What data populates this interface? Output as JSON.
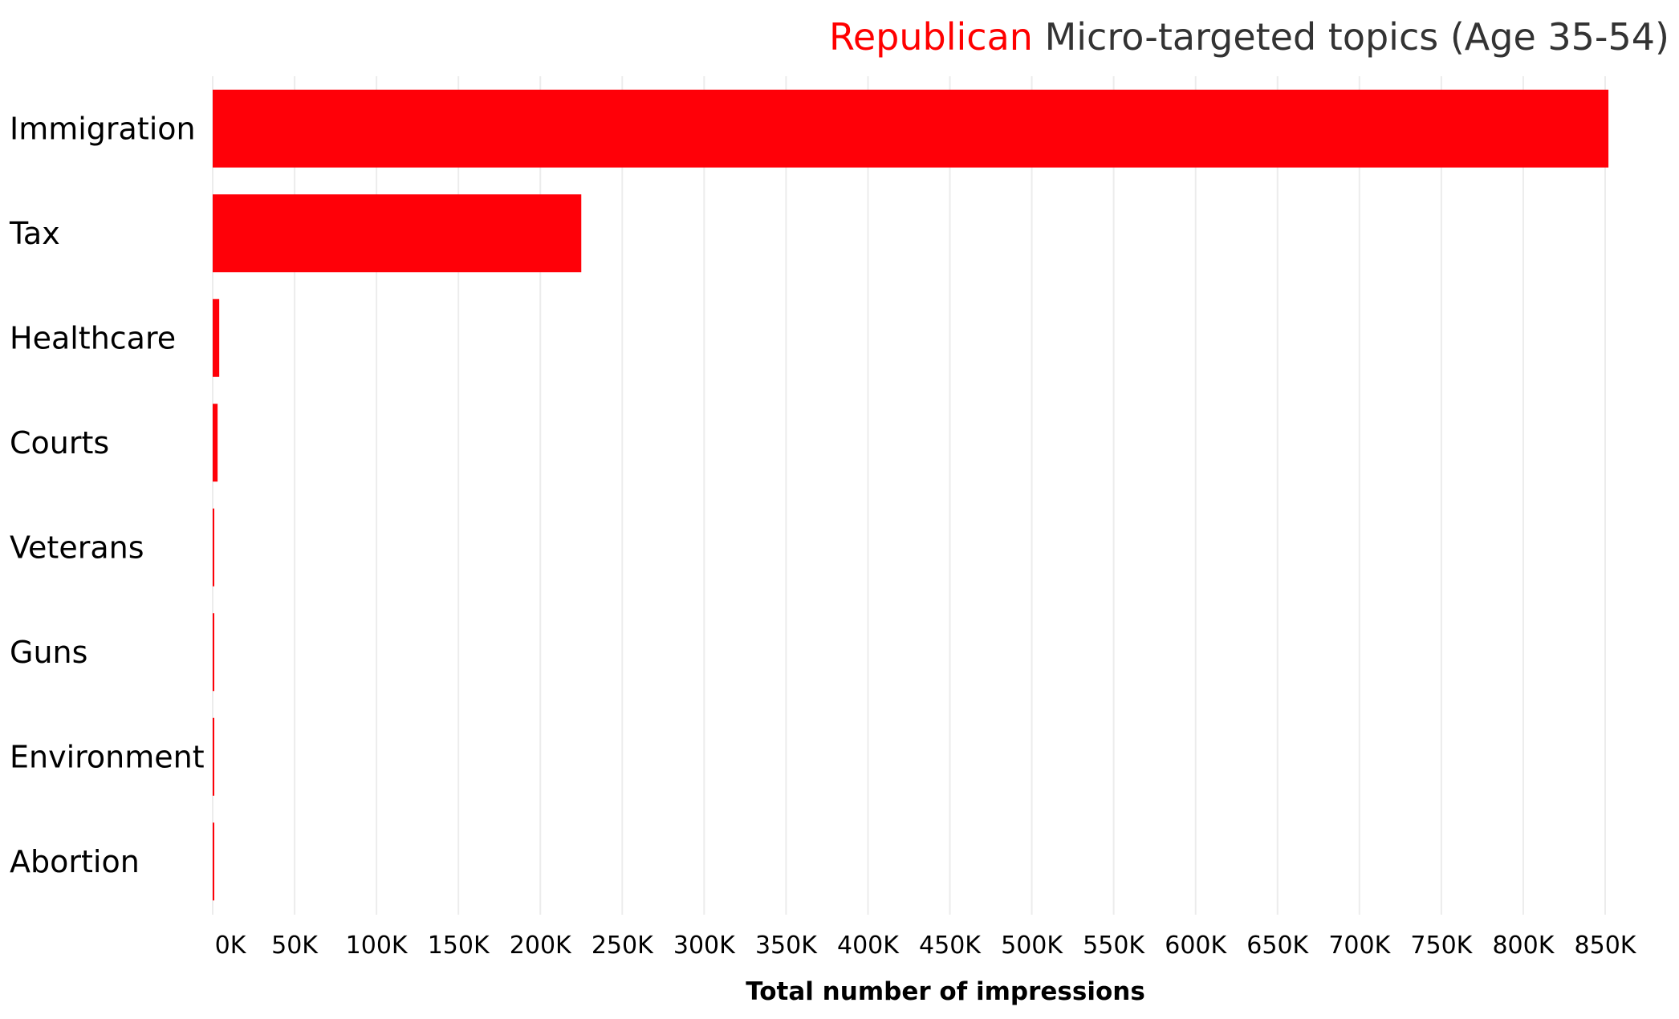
{
  "chart_data": {
    "type": "bar",
    "orientation": "horizontal",
    "title": {
      "highlight": "Republican",
      "rest": "Micro-targeted topics (Age 35-54)"
    },
    "categories": [
      "Immigration",
      "Tax",
      "Healthcare",
      "Courts",
      "Veterans",
      "Guns",
      "Environment",
      "Abortion"
    ],
    "values": [
      852000,
      225000,
      4000,
      3000,
      700,
      600,
      500,
      400
    ],
    "xlabel": "Total number of impressions",
    "ylabel": "",
    "xlim": [
      0,
      850000
    ],
    "x_ticks": [
      0,
      50000,
      100000,
      150000,
      200000,
      250000,
      300000,
      350000,
      400000,
      450000,
      500000,
      550000,
      600000,
      650000,
      700000,
      750000,
      800000,
      850000
    ],
    "x_tick_labels": [
      "0K",
      "50K",
      "100K",
      "150K",
      "200K",
      "250K",
      "300K",
      "350K",
      "400K",
      "450K",
      "500K",
      "550K",
      "600K",
      "650K",
      "700K",
      "750K",
      "800K",
      "850K"
    ],
    "grid": "vertical",
    "legend": "none",
    "colors": {
      "bar": "#ff0008",
      "title_highlight": "#ff0000",
      "title_rest": "#333333"
    }
  }
}
